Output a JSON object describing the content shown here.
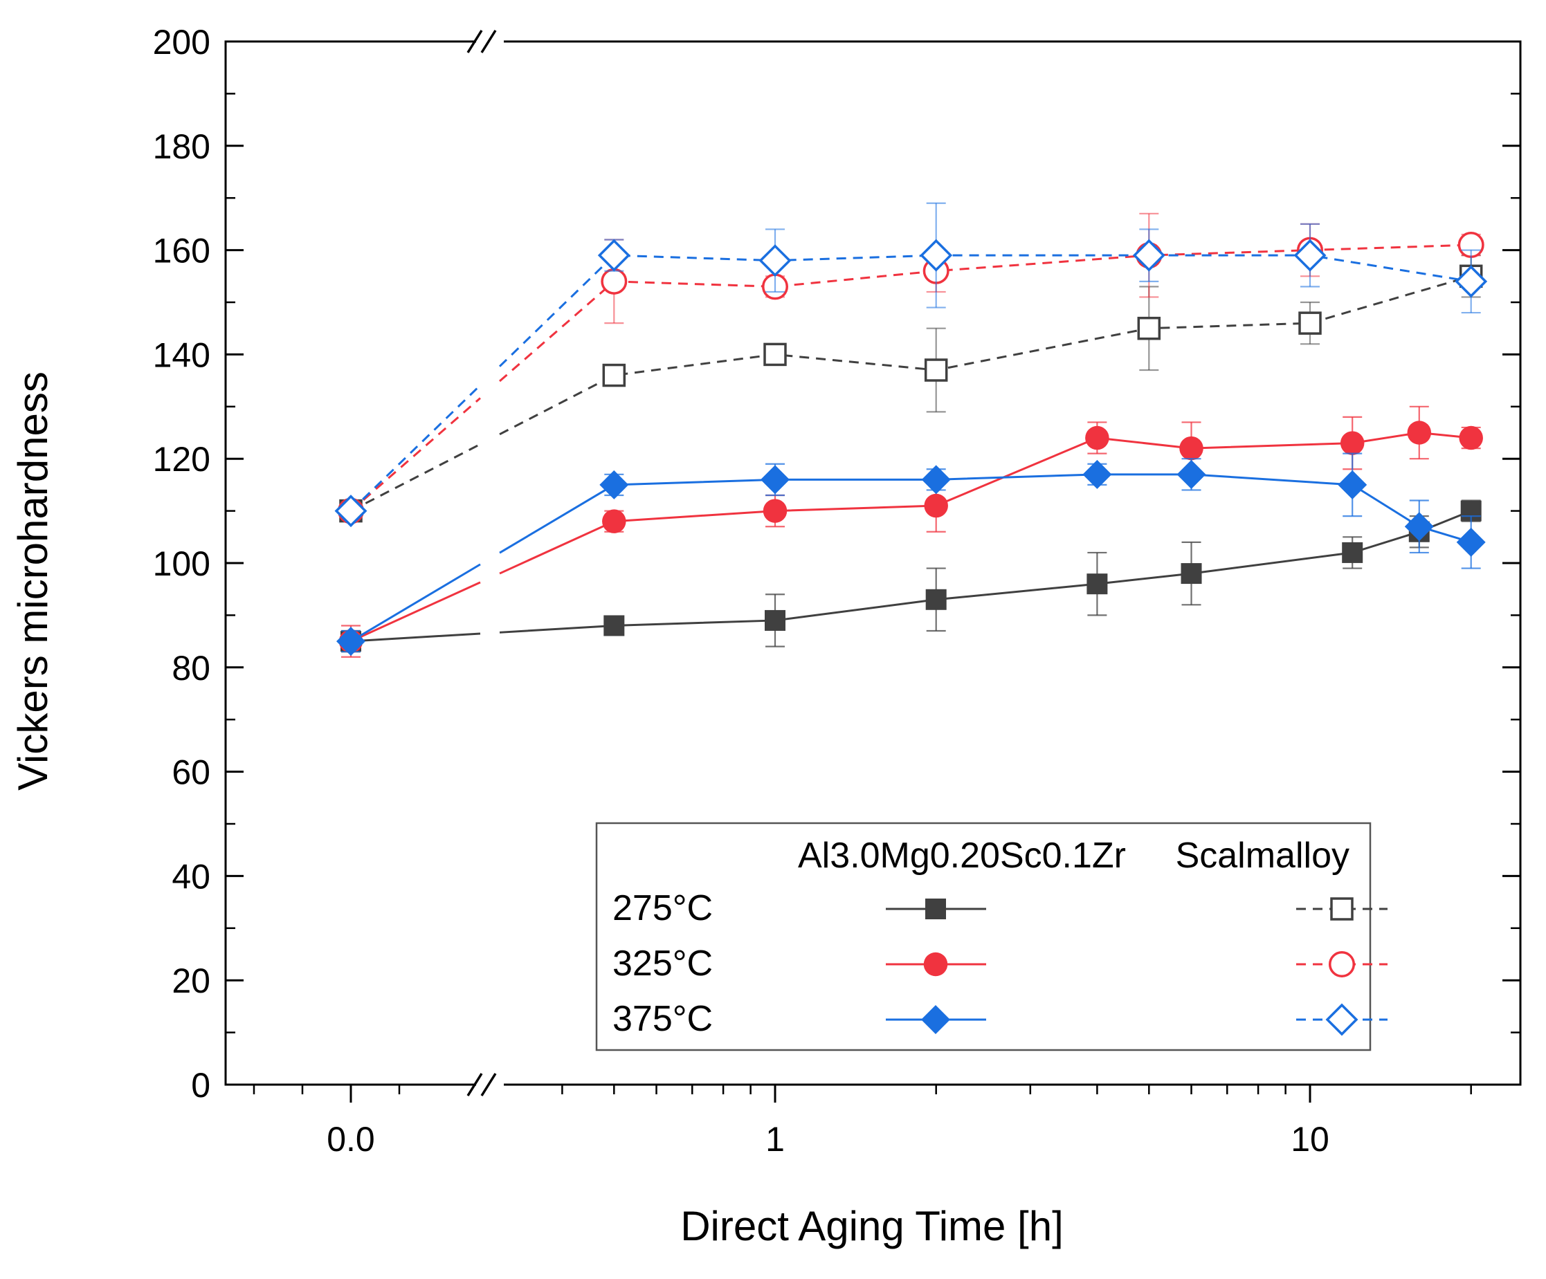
{
  "chart_data": {
    "type": "line",
    "xlabel": "Direct Aging Time [h]",
    "ylabel": "Vickers microhardness",
    "ylim": [
      0,
      200
    ],
    "y_ticks": [
      "0",
      "20",
      "40",
      "60",
      "80",
      "100",
      "120",
      "140",
      "160",
      "180",
      "200"
    ],
    "x_scale": "broken axis: linear segment at 0, then log scale from about 0.5 h to 20 h",
    "x_ticks": [
      "0.0",
      "1",
      "10"
    ],
    "legend": {
      "position": "bottom-right",
      "group_headers": [
        "Al3.0Mg0.20Sc0.1Zr",
        "Scalmalloy"
      ],
      "row_labels": [
        "275°C",
        "325°C",
        "375°C"
      ]
    },
    "colors": {
      "275": "#404040",
      "325": "#f0333f",
      "375": "#1a6fe0",
      "frame": "#000000"
    },
    "series": [
      {
        "name": "Al3.0Mg0.20Sc0.1Zr 275°C",
        "alloy": "Al3.0Mg0.20Sc0.1Zr",
        "temp": "275",
        "marker": "square",
        "filled": true,
        "dashed": false,
        "x": [
          0,
          0.5,
          1,
          2,
          4,
          6,
          12,
          16,
          20
        ],
        "y": [
          85,
          88,
          89,
          93,
          96,
          98,
          102,
          106,
          110
        ],
        "err": [
          2,
          1,
          5,
          6,
          6,
          6,
          3,
          3,
          2
        ]
      },
      {
        "name": "Al3.0Mg0.20Sc0.1Zr 325°C",
        "alloy": "Al3.0Mg0.20Sc0.1Zr",
        "temp": "325",
        "marker": "circle",
        "filled": true,
        "dashed": false,
        "x": [
          0,
          0.5,
          1,
          2,
          4,
          6,
          12,
          16,
          20
        ],
        "y": [
          85,
          108,
          110,
          111,
          124,
          122,
          123,
          125,
          124
        ],
        "err": [
          3,
          2,
          3,
          5,
          3,
          5,
          5,
          5,
          2
        ]
      },
      {
        "name": "Al3.0Mg0.20Sc0.1Zr 375°C",
        "alloy": "Al3.0Mg0.20Sc0.1Zr",
        "temp": "375",
        "marker": "diamond",
        "filled": true,
        "dashed": false,
        "x": [
          0,
          0.5,
          1,
          2,
          4,
          6,
          12,
          16,
          20
        ],
        "y": [
          85,
          115,
          116,
          116,
          117,
          117,
          115,
          107,
          104
        ],
        "err": [
          2,
          2,
          3,
          2,
          2,
          3,
          6,
          5,
          5
        ]
      },
      {
        "name": "Scalmalloy 275°C",
        "alloy": "Scalmalloy",
        "temp": "275",
        "marker": "square",
        "filled": false,
        "dashed": true,
        "x": [
          0,
          0.5,
          1,
          2,
          5,
          10,
          20
        ],
        "y": [
          110,
          136,
          140,
          137,
          145,
          146,
          155
        ],
        "err": [
          1,
          2,
          2,
          8,
          8,
          4,
          4
        ]
      },
      {
        "name": "Scalmalloy 325°C",
        "alloy": "Scalmalloy",
        "temp": "325",
        "marker": "circle",
        "filled": false,
        "dashed": true,
        "x": [
          0,
          0.5,
          1,
          2,
          5,
          10,
          20
        ],
        "y": [
          110,
          154,
          153,
          156,
          159,
          160,
          161
        ],
        "err": [
          1,
          8,
          2,
          4,
          8,
          5,
          2
        ]
      },
      {
        "name": "Scalmalloy 375°C",
        "alloy": "Scalmalloy",
        "temp": "375",
        "marker": "diamond",
        "filled": false,
        "dashed": true,
        "x": [
          0,
          0.5,
          1,
          2,
          5,
          10,
          20
        ],
        "y": [
          110,
          159,
          158,
          159,
          159,
          159,
          154
        ],
        "err": [
          1,
          3,
          6,
          10,
          5,
          6,
          6
        ]
      }
    ]
  }
}
